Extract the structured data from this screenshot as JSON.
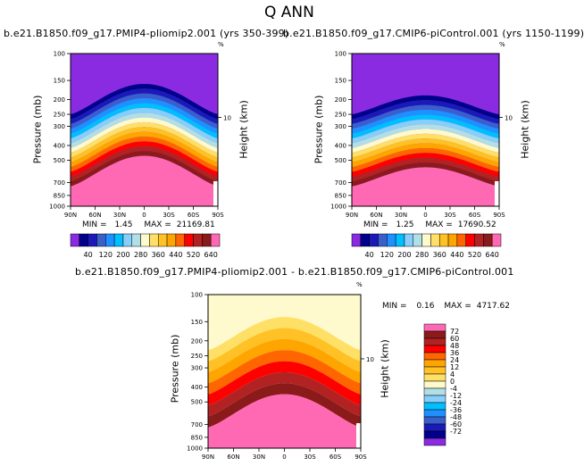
{
  "figure": {
    "title": "Q ANN",
    "percent_mark": "%"
  },
  "panels": [
    {
      "subtitle": "b.e21.B1850.f09_g17.PMIP4-pliomip2.001 (yrs 350-399)",
      "min_label": "MIN =",
      "min_value": "1.45",
      "max_label": "MAX =",
      "max_value": "21169.81"
    },
    {
      "subtitle": "b.e21.B1850.f09_g17.CMIP6-piControl.001 (yrs 1150-1199)",
      "min_label": "MIN =",
      "min_value": "1.25",
      "max_label": "MAX =",
      "max_value": "17690.52"
    },
    {
      "subtitle": "b.e21.B1850.f09_g17.PMIP4-pliomip2.001 - b.e21.B1850.f09_g17.CMIP6-piControl.001",
      "min_label": "MIN =",
      "min_value": "0.16",
      "max_label": "MAX =",
      "max_value": "4717.62"
    }
  ],
  "chart_data": {
    "type": "contour",
    "x_axis": {
      "ticks": [
        "90N",
        "60N",
        "30N",
        "0",
        "30S",
        "60S",
        "90S"
      ],
      "lat_values": [
        90,
        60,
        30,
        0,
        -30,
        -60,
        -90
      ]
    },
    "y_axis": {
      "label": "Pressure (mb)",
      "scale": "log",
      "range_mb": [
        1000,
        100
      ],
      "ticks": [
        "100",
        "150",
        "200",
        "250",
        "300",
        "400",
        "500",
        "700",
        "850",
        "1000"
      ],
      "tick_values": [
        100,
        150,
        200,
        250,
        300,
        400,
        500,
        700,
        850,
        1000
      ]
    },
    "right_axis": {
      "label": "Height (km)",
      "ticks": [
        "10"
      ],
      "tick_values_km": [
        10
      ]
    },
    "abs_colorbar": {
      "labels": [
        "40",
        "120",
        "200",
        "280",
        "360",
        "440",
        "520",
        "640"
      ],
      "colors": [
        "#8a2be2",
        "#00008b",
        "#1a1ab8",
        "#3a5fcd",
        "#1e90ff",
        "#00bfff",
        "#87cefa",
        "#b0e0e6",
        "#fffacd",
        "#ffe066",
        "#ffc125",
        "#ffa500",
        "#ff6600",
        "#ff0000",
        "#b22222",
        "#8b1a1a",
        "#ff69b4"
      ]
    },
    "diff_colorbar": {
      "labels": [
        "72",
        "60",
        "48",
        "36",
        "24",
        "12",
        "4",
        "0",
        "-4",
        "-12",
        "-24",
        "-36",
        "-48",
        "-60",
        "-72"
      ],
      "colors": [
        "#ff69b4",
        "#8b1a1a",
        "#b22222",
        "#ff0000",
        "#ff6600",
        "#ffa500",
        "#ffc125",
        "#ffe066",
        "#fffacd",
        "#b0e0e6",
        "#87cefa",
        "#00bfff",
        "#1e90ff",
        "#3a5fcd",
        "#1a1ab8",
        "#00008b",
        "#8a2be2"
      ]
    }
  }
}
